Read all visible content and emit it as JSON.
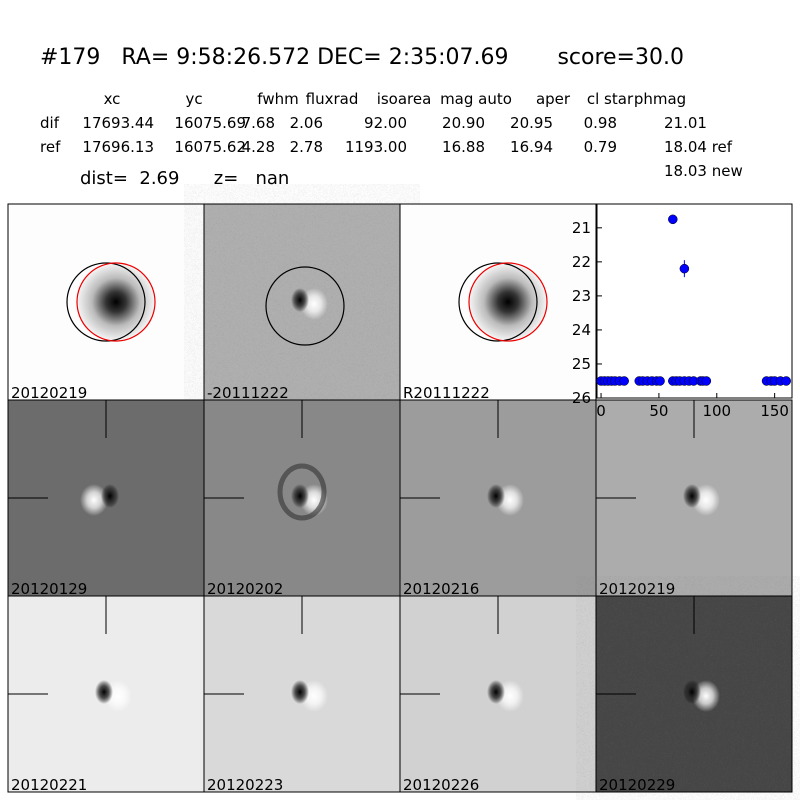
{
  "header": {
    "title": "#179   RA= 9:58:26.572 DEC= 2:35:07.69       score=30.0"
  },
  "table": {
    "columns": [
      "xc",
      "yc",
      "fwhm",
      "fluxrad",
      "isoarea",
      "mag auto",
      "aper",
      "cl star",
      "phmag"
    ],
    "rows": [
      [
        "dif",
        "17693.44",
        "16075.69",
        "7.68",
        "2.06",
        "92.00",
        "20.90",
        "20.95",
        "0.98",
        "21.01"
      ],
      [
        "ref",
        "17696.13",
        "16075.62",
        "4.28",
        "2.78",
        "1193.00",
        "16.88",
        "16.94",
        "0.79",
        "18.04 ref"
      ]
    ],
    "extra": "18.03 new"
  },
  "summary": "dist=  2.69      z=   nan",
  "panels": [
    "20120219",
    "-20111222",
    "R20111222",
    "20120129",
    "20120202",
    "20120216",
    "20120219",
    "20120221",
    "20120223",
    "20120226",
    "20120229"
  ],
  "plot": {
    "type": "scatter",
    "color": "#0000ff",
    "x": [
      0,
      3,
      6,
      9,
      12,
      16,
      20,
      33,
      36,
      40,
      44,
      48,
      51,
      62,
      62,
      65,
      68,
      72,
      72,
      76,
      80,
      86,
      88,
      91,
      143,
      147,
      150,
      155,
      160
    ],
    "y": [
      25.5,
      25.5,
      25.5,
      25.5,
      25.5,
      25.5,
      25.5,
      25.5,
      25.5,
      25.5,
      25.5,
      25.5,
      25.5,
      20.75,
      25.5,
      25.5,
      25.5,
      22.2,
      25.5,
      25.5,
      25.5,
      25.5,
      25.5,
      25.5,
      25.5,
      25.5,
      25.5,
      25.5,
      25.5
    ],
    "yerr": [
      null,
      null,
      null,
      null,
      null,
      null,
      null,
      null,
      null,
      null,
      null,
      null,
      null,
      null,
      null,
      null,
      null,
      0.25,
      null,
      null,
      null,
      null,
      null,
      null,
      null,
      null,
      null,
      null,
      null
    ],
    "xlim": [
      -3.5,
      165
    ],
    "ylim": [
      26,
      20.3
    ],
    "xticks": [
      0,
      50,
      100,
      150
    ],
    "yticks": [
      21,
      22,
      23,
      24,
      25,
      26
    ],
    "inverted_y": true
  }
}
